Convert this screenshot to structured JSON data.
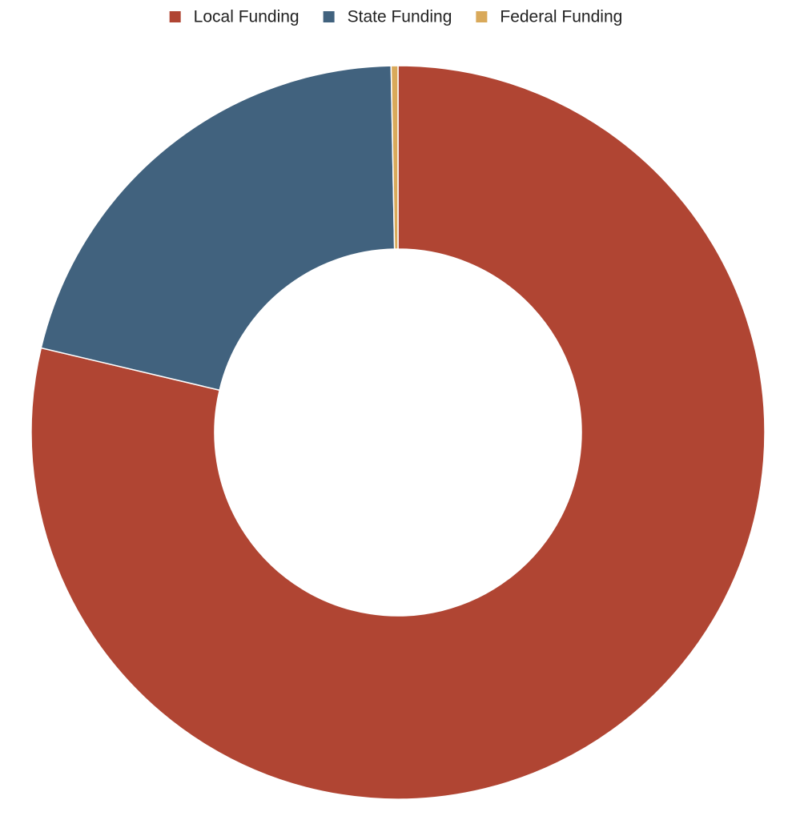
{
  "chart_data": {
    "type": "donut",
    "categories": [
      "Local Funding",
      "State Funding",
      "Federal Funding"
    ],
    "values": [
      78.7,
      21.0,
      0.3
    ],
    "colors": [
      "#b04533",
      "#41627e",
      "#d9a95a"
    ],
    "legend": "top"
  }
}
